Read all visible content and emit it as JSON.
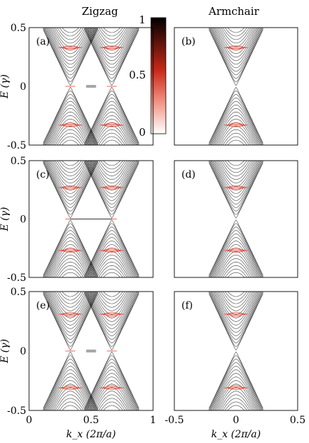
{
  "chart_data": [
    {
      "type": "line",
      "panel": "(a)",
      "title": "Zigzag",
      "ylabel": "E (γ)",
      "xlim": [
        0,
        1
      ],
      "ylim": [
        -0.5,
        0.5
      ],
      "yticks": [
        "0.5",
        "0",
        "-0.5"
      ],
      "valleys": [
        0.333,
        0.667
      ],
      "bands": [
        {
          "kind": "dirac",
          "center": 0.333,
          "edge": 0.33,
          "flat": 0.0
        },
        {
          "kind": "dirac",
          "center": 0.667,
          "edge": 0.33,
          "flat": 0.0
        }
      ]
    },
    {
      "type": "line",
      "panel": "(b)",
      "title": "Armchair",
      "xlim": [
        -0.5,
        0.5
      ],
      "ylim": [
        -0.5,
        0.5
      ],
      "valleys": [
        0.0
      ],
      "bands": [
        {
          "kind": "dirac",
          "center": 0.0,
          "edge": 0.33
        }
      ]
    },
    {
      "type": "line",
      "panel": "(c)",
      "ylabel": "E (γ)",
      "xlim": [
        0,
        1
      ],
      "ylim": [
        -0.5,
        0.5
      ],
      "yticks": [
        "0.5",
        "0",
        "-0.5"
      ],
      "valleys": [
        0.333,
        0.667
      ],
      "bands": [
        {
          "kind": "dirac",
          "center": 0.333,
          "edge": 0.27
        },
        {
          "kind": "dirac",
          "center": 0.667,
          "edge": 0.27
        }
      ]
    },
    {
      "type": "line",
      "panel": "(d)",
      "xlim": [
        -0.5,
        0.5
      ],
      "ylim": [
        -0.5,
        0.5
      ],
      "valleys": [
        0.0
      ],
      "bands": [
        {
          "kind": "dirac",
          "center": 0.0,
          "edge": 0.27
        }
      ]
    },
    {
      "type": "line",
      "panel": "(e)",
      "ylabel": "E (γ)",
      "xlabel": "k_x (2π/a)",
      "xlim": [
        0,
        1
      ],
      "ylim": [
        -0.5,
        0.5
      ],
      "xticks": [
        "0",
        "0.5",
        "1"
      ],
      "yticks": [
        "0.5",
        "0",
        "-0.5"
      ],
      "valleys": [
        0.333,
        0.667
      ],
      "bands": [
        {
          "kind": "dirac",
          "center": 0.333,
          "edge": 0.31
        },
        {
          "kind": "dirac",
          "center": 0.667,
          "edge": 0.31
        }
      ]
    },
    {
      "type": "line",
      "panel": "(f)",
      "xlabel": "k_x (2π/a)",
      "xlim": [
        -0.5,
        0.5
      ],
      "ylim": [
        -0.5,
        0.5
      ],
      "xticks": [
        "-0.5",
        "0",
        "0.5"
      ],
      "valleys": [
        0.0
      ],
      "bands": [
        {
          "kind": "dirac",
          "center": 0.0,
          "edge": 0.31
        }
      ]
    }
  ],
  "colorbar": {
    "ticks": [
      "1",
      "0.5",
      "0"
    ],
    "colors": [
      "#000000",
      "#e23a2a",
      "#ffffff"
    ]
  },
  "labels": {
    "zigzag": "Zigzag",
    "armchair": "Armchair",
    "a": "(a)",
    "b": "(b)",
    "c": "(c)",
    "d": "(d)",
    "e": "(e)",
    "f": "(f)",
    "ylabel": "E (γ)",
    "xlabel": "kx (2π/a)"
  }
}
